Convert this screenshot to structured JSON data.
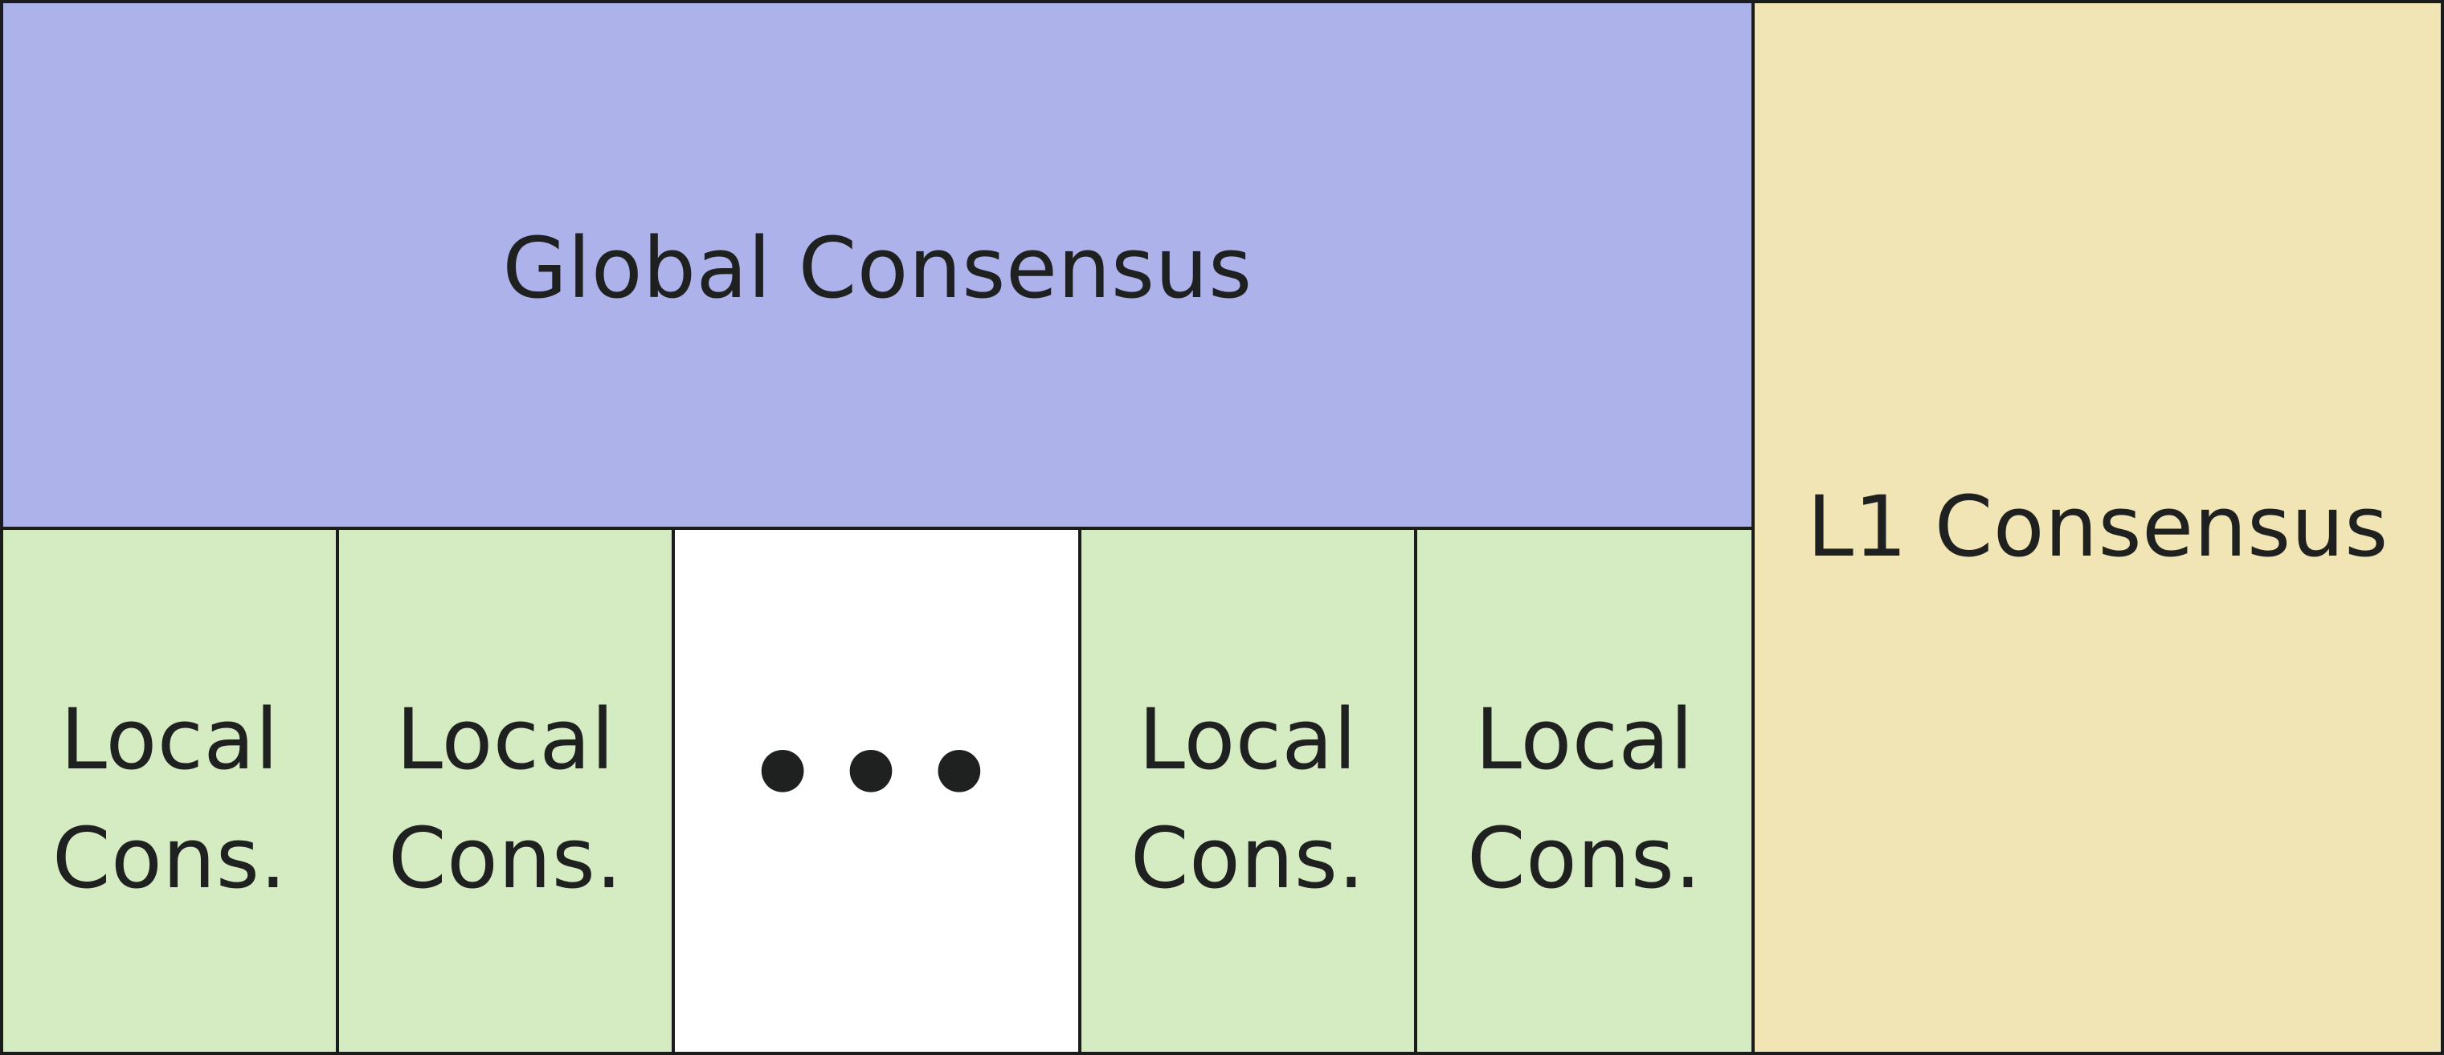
{
  "blocks": {
    "global": {
      "label": "Global Consensus",
      "color": "#adb2eb"
    },
    "l1": {
      "label": "L1 Consensus",
      "color": "#f2e5b5"
    },
    "locals": [
      {
        "label": "Local\nCons.",
        "color": "#d5ebc1"
      },
      {
        "label": "Local\nCons.",
        "color": "#d5ebc1"
      },
      {
        "label": "Local\nCons.",
        "color": "#d5ebc1"
      },
      {
        "label": "Local\nCons.",
        "color": "#d5ebc1"
      }
    ],
    "ellipsis": {
      "label": "•••"
    }
  }
}
